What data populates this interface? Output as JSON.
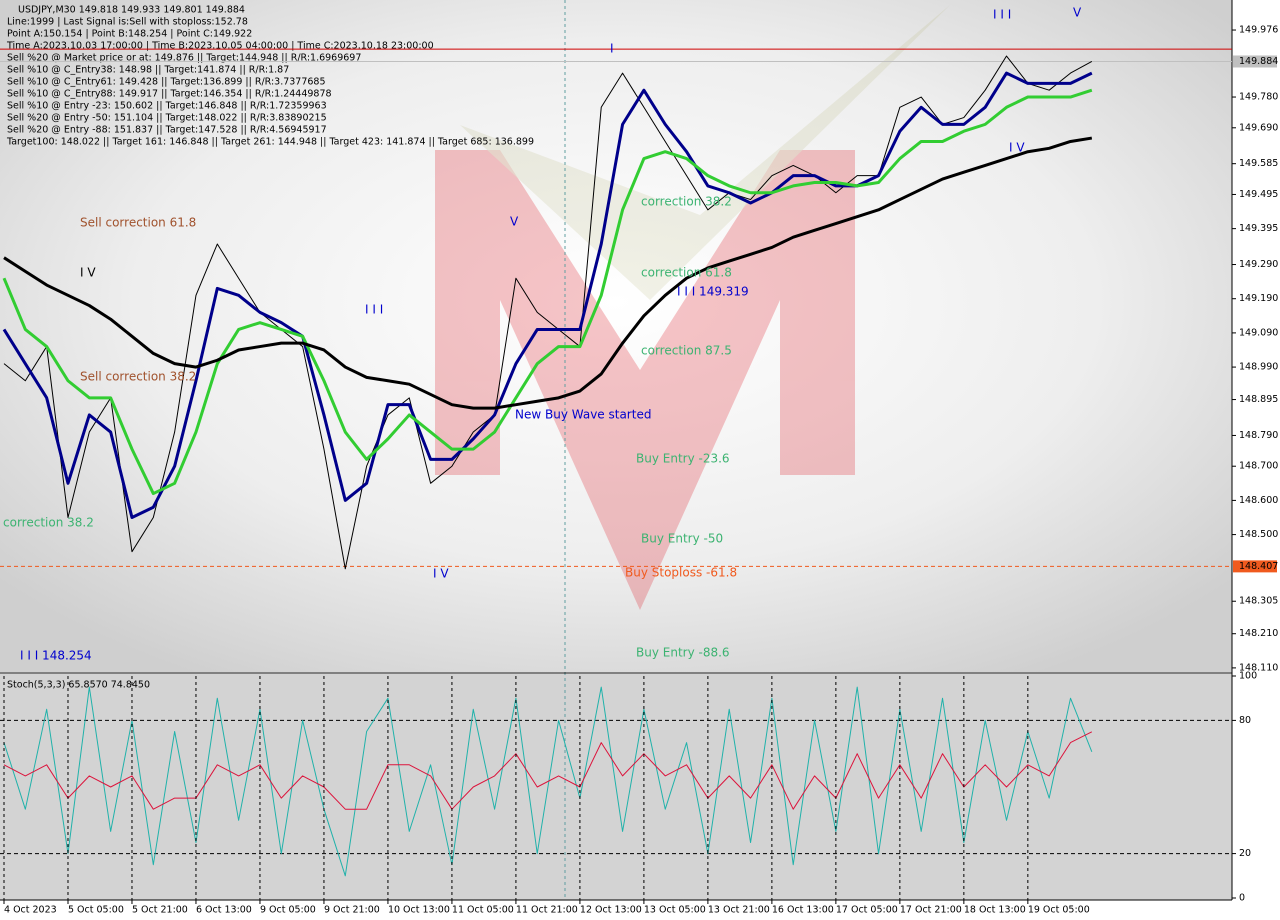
{
  "chart_data": {
    "type": "line",
    "title": "USDJPY,M30  149.818 149.933 149.801 149.884",
    "info_lines": [
      "Line:1999 | Last Signal is:Sell with stoploss:152.78",
      "Point A:150.154 | Point B:148.254 | Point C:149.922",
      "Time A:2023.10.03 17:00:00 | Time B:2023.10.05 04:00:00 | Time C:2023.10.18 23:00:00",
      "Sell %20 @ Market price or at: 149.876 || Target:144.948 || R/R:1.6969697",
      "Sell %10 @ C_Entry38: 148.98 || Target:141.874 || R/R:1.87",
      "Sell %10 @ C_Entry61: 149.428 || Target:136.899 || R/R:3.7377685",
      "Sell %10 @ C_Entry88: 149.917 || Target:146.354 || R/R:1.24449878",
      "Sell %10 @ Entry -23: 150.602 || Target:146.848 || R/R:1.72359963",
      "Sell %20 @ Entry -50: 151.104 || Target:148.022 || R/R:3.83890215",
      "Sell %20 @ Entry -88: 151.837 || Target:147.528 || R/R:4.56945917",
      "Target100: 148.022 || Target 161: 146.848 || Target 261: 144.948 || Target 423: 141.874 || Target 685: 136.899"
    ],
    "categories": [
      "4 Oct 2023",
      null,
      null,
      "5 Oct 05:00",
      null,
      null,
      "5 Oct 21:00",
      null,
      null,
      "6 Oct 13:00",
      null,
      null,
      "9 Oct 05:00",
      null,
      null,
      "9 Oct 21:00",
      null,
      null,
      "10 Oct 13:00",
      null,
      null,
      "11 Oct 05:00",
      null,
      null,
      "11 Oct 21:00",
      null,
      null,
      "12 Oct 13:00",
      null,
      null,
      "13 Oct 05:00",
      null,
      null,
      "13 Oct 21:00",
      null,
      null,
      "16 Oct 13:00",
      null,
      null,
      "17 Oct 05:00",
      null,
      null,
      "17 Oct 21:00",
      null,
      null,
      "18 Oct 13:00",
      null,
      null,
      "19 Oct 05:00",
      null,
      null,
      null
    ],
    "series": [
      {
        "name": "Price",
        "color": "#000000",
        "width": 1,
        "values": [
          149.0,
          148.95,
          149.05,
          148.55,
          148.8,
          148.9,
          148.45,
          148.55,
          148.8,
          149.2,
          149.35,
          149.25,
          149.15,
          149.1,
          149.05,
          148.75,
          148.4,
          148.7,
          148.85,
          148.9,
          148.65,
          148.7,
          148.8,
          148.85,
          149.25,
          149.15,
          149.1,
          149.05,
          149.75,
          149.85,
          149.75,
          149.65,
          149.55,
          149.45,
          149.5,
          149.48,
          149.55,
          149.58,
          149.55,
          149.5,
          149.55,
          149.55,
          149.75,
          149.78,
          149.7,
          149.72,
          149.8,
          149.9,
          149.82,
          149.8,
          149.85,
          149.884
        ]
      },
      {
        "name": "Fast MA",
        "color": "#00008b",
        "width": 3,
        "values": [
          149.1,
          149.0,
          148.9,
          148.65,
          148.85,
          148.8,
          148.55,
          148.58,
          148.7,
          148.95,
          149.22,
          149.2,
          149.15,
          149.12,
          149.08,
          148.85,
          148.6,
          148.65,
          148.88,
          148.88,
          148.72,
          148.72,
          148.78,
          148.85,
          149.0,
          149.1,
          149.1,
          149.1,
          149.35,
          149.7,
          149.8,
          149.7,
          149.62,
          149.52,
          149.5,
          149.47,
          149.5,
          149.55,
          149.55,
          149.52,
          149.52,
          149.55,
          149.68,
          149.75,
          149.7,
          149.7,
          149.75,
          149.85,
          149.82,
          149.82,
          149.82,
          149.85
        ]
      },
      {
        "name": "Middle MA",
        "color": "#32cd32",
        "width": 3,
        "values": [
          149.25,
          149.1,
          149.05,
          148.95,
          148.9,
          148.9,
          148.75,
          148.62,
          148.65,
          148.8,
          149.0,
          149.1,
          149.12,
          149.1,
          149.08,
          148.95,
          148.8,
          148.72,
          148.78,
          148.85,
          148.8,
          148.75,
          148.75,
          148.8,
          148.9,
          149.0,
          149.05,
          149.05,
          149.2,
          149.45,
          149.6,
          149.62,
          149.6,
          149.55,
          149.52,
          149.5,
          149.5,
          149.52,
          149.53,
          149.53,
          149.52,
          149.53,
          149.6,
          149.65,
          149.65,
          149.68,
          149.7,
          149.75,
          149.78,
          149.78,
          149.78,
          149.8
        ]
      },
      {
        "name": "Slow MA",
        "color": "#000000",
        "width": 3,
        "values": [
          149.31,
          149.27,
          149.23,
          149.2,
          149.17,
          149.13,
          149.08,
          149.03,
          149.0,
          148.99,
          149.01,
          149.04,
          149.05,
          149.06,
          149.06,
          149.04,
          148.99,
          148.96,
          148.95,
          148.94,
          148.91,
          148.88,
          148.87,
          148.87,
          148.88,
          148.89,
          148.9,
          148.92,
          148.97,
          149.06,
          149.14,
          149.2,
          149.25,
          149.28,
          149.3,
          149.32,
          149.34,
          149.37,
          149.39,
          149.41,
          149.43,
          149.45,
          149.48,
          149.51,
          149.54,
          149.56,
          149.58,
          149.6,
          149.62,
          149.63,
          149.65,
          149.66
        ]
      }
    ],
    "ylim": [
      148.098,
      150.058
    ],
    "yticks": [
      149.976,
      {
        "value": 149.78,
        "label": "149.780"
      },
      {
        "value": 149.69,
        "label": "149.690"
      },
      149.585,
      149.495,
      149.395,
      {
        "value": 149.29,
        "label": "149.290"
      },
      {
        "value": 149.19,
        "label": "149.190"
      },
      {
        "value": 149.09,
        "label": "149.090"
      },
      {
        "value": 148.99,
        "label": "148.990"
      },
      148.895,
      {
        "value": 148.79,
        "label": "148.790"
      },
      {
        "value": 148.7,
        "label": "148.700"
      },
      {
        "value": 148.6,
        "label": "148.600"
      },
      {
        "value": 148.5,
        "label": "148.500"
      },
      148.305,
      {
        "value": 148.21,
        "label": "148.210"
      },
      {
        "value": 148.11,
        "label": "148.110"
      }
    ],
    "levels": [
      {
        "value": 149.92,
        "color": "#d00000",
        "style": "solid"
      },
      {
        "value": 149.884,
        "label": "149.884",
        "color": "#c0c0c0",
        "text_color": "#000000",
        "style": "solid"
      },
      {
        "value": 148.407,
        "label": "148.407",
        "color": "#f05a1e",
        "text_color": "#ffffff",
        "style": "dashed"
      }
    ],
    "annotations": [
      {
        "text": "Sell correction 61.8",
        "color": "#a0522d"
      },
      {
        "text": "Sell correction 38.2",
        "color": "#a0522d"
      },
      {
        "text": "correction 38.2",
        "color": "#3cb371"
      },
      {
        "text": "correction 38.2",
        "color": "#3cb371"
      },
      {
        "text": "correction 61.8",
        "color": "#3cb371"
      },
      {
        "text": "correction 87.5",
        "color": "#3cb371"
      },
      {
        "text": "I I I 149.319",
        "color": "#0000cd"
      },
      {
        "text": "I I I 148.254",
        "color": "#0000cd"
      },
      {
        "text": "New Buy Wave started",
        "color": "#0000cd"
      },
      {
        "text": "Buy Entry -23.6",
        "color": "#3cb371"
      },
      {
        "text": "Buy Entry -50",
        "color": "#3cb371"
      },
      {
        "text": "Buy Stoploss -61.8",
        "color": "#f05a1e"
      },
      {
        "text": "Buy Entry -88.6",
        "color": "#3cb371"
      },
      {
        "text": "I V",
        "color": "#000000"
      },
      {
        "text": "I I I",
        "color": "#0000cd"
      },
      {
        "text": "V",
        "color": "#0000cd"
      },
      {
        "text": "I V",
        "color": "#0000cd"
      },
      {
        "text": "I",
        "color": "#0000cd"
      },
      {
        "text": "I I I",
        "color": "#0000cd"
      },
      {
        "text": "V",
        "color": "#0000cd"
      },
      {
        "text": "I V",
        "color": "#0000cd"
      }
    ],
    "stochastic": {
      "title": "Stoch(5,3,3) 65.8570 74.8450",
      "ylim": [
        0,
        100
      ],
      "yticks": [
        0,
        20,
        80,
        100
      ],
      "levels": [
        20,
        80
      ],
      "series": [
        {
          "name": "Main",
          "color": "#20b2aa",
          "values": [
            70,
            40,
            85,
            20,
            95,
            30,
            80,
            15,
            75,
            25,
            90,
            35,
            85,
            20,
            80,
            40,
            10,
            75,
            90,
            30,
            60,
            15,
            85,
            40,
            90,
            20,
            80,
            45,
            95,
            30,
            85,
            40,
            70,
            20,
            85,
            25,
            90,
            15,
            80,
            30,
            95,
            20,
            85,
            30,
            90,
            25,
            80,
            35,
            75,
            45,
            90,
            65.857
          ]
        },
        {
          "name": "Signal",
          "color": "#dc143c",
          "values": [
            60,
            55,
            60,
            45,
            55,
            50,
            55,
            40,
            45,
            45,
            60,
            55,
            60,
            45,
            55,
            50,
            40,
            40,
            60,
            60,
            55,
            40,
            50,
            55,
            65,
            50,
            55,
            50,
            70,
            55,
            65,
            55,
            60,
            45,
            55,
            45,
            60,
            40,
            55,
            45,
            65,
            45,
            60,
            45,
            65,
            50,
            60,
            50,
            60,
            55,
            70,
            74.845
          ]
        }
      ]
    }
  }
}
